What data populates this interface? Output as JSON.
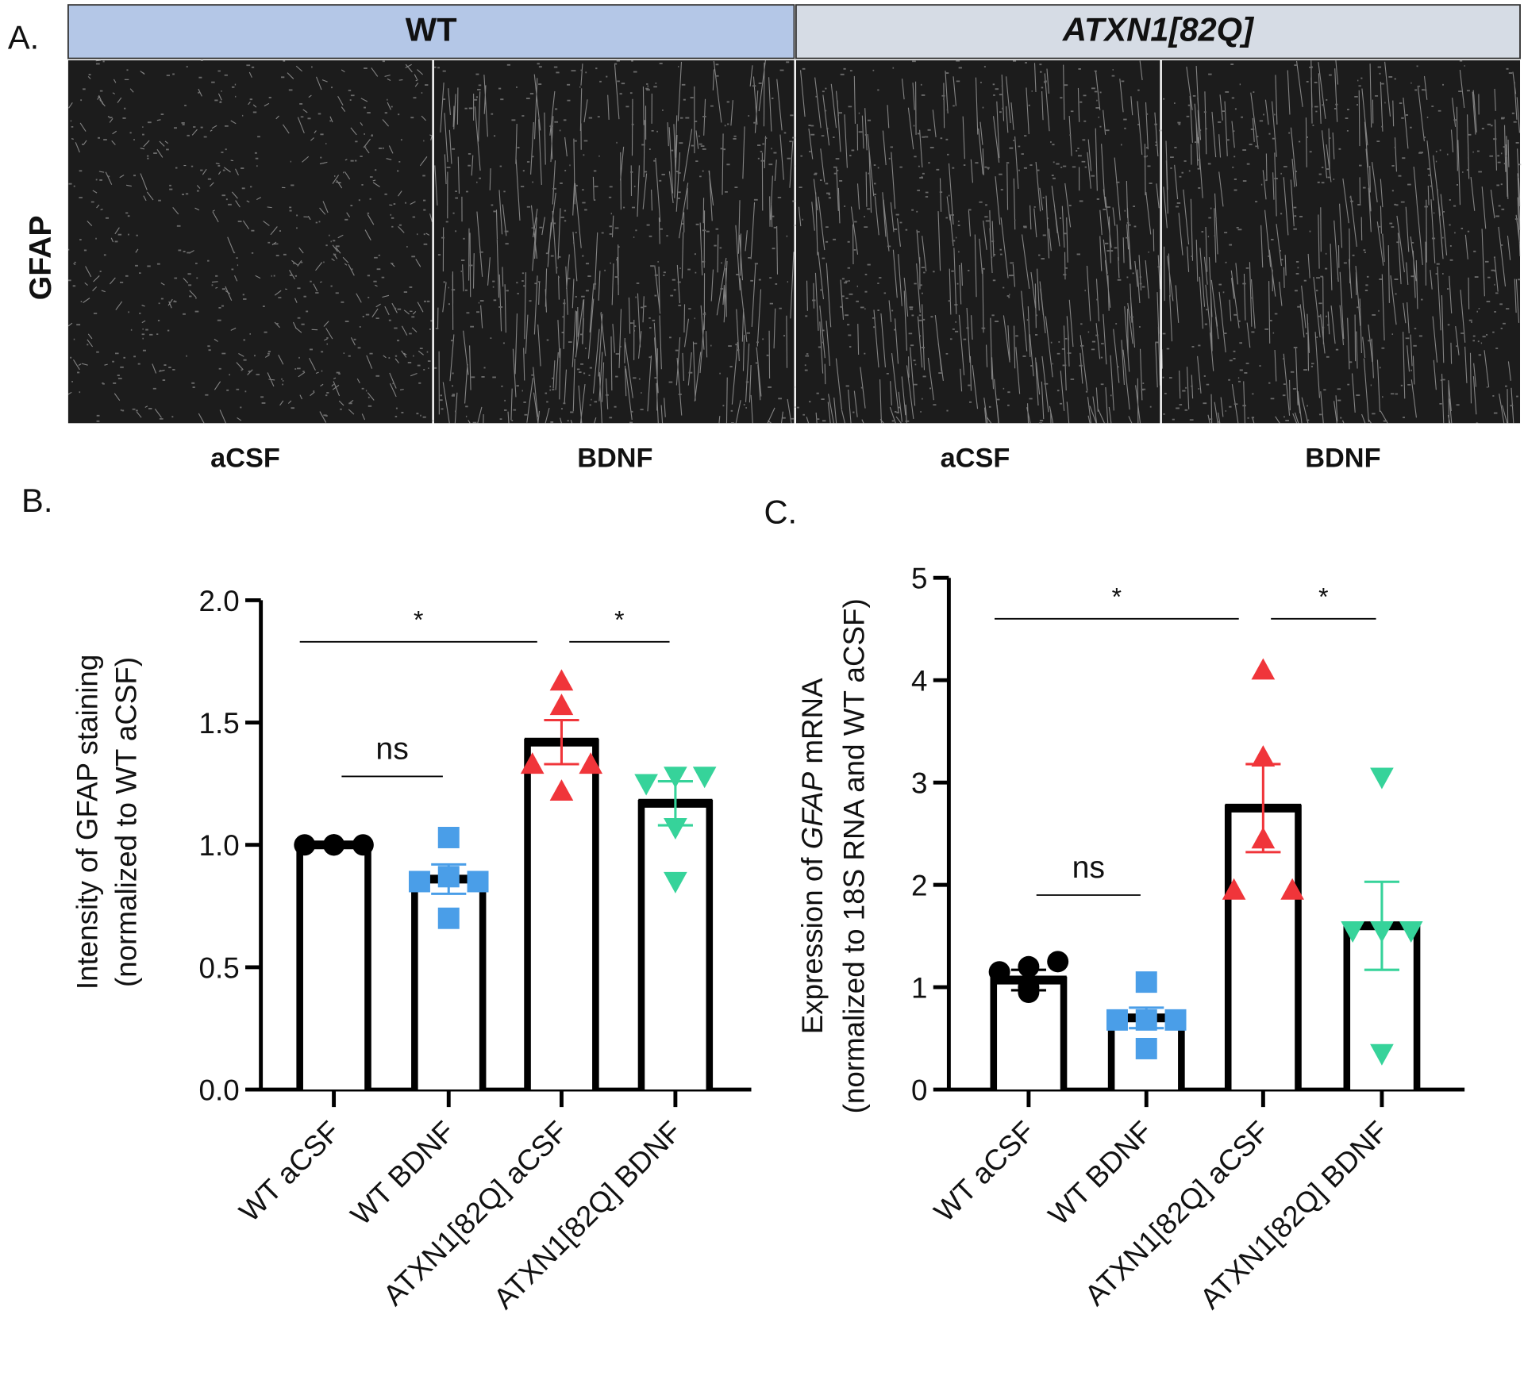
{
  "panel_labels": [
    "A.",
    "B.",
    "C."
  ],
  "panel_a": {
    "headers": [
      "WT",
      "ATXN1[82Q]"
    ],
    "row_label": "GFAP",
    "columns": [
      "aCSF",
      "BDNF",
      "aCSF",
      "BDNF"
    ]
  },
  "chart_data": [
    {
      "type": "bar",
      "ylabel": [
        {
          "text": "Intensity of GFAP staining"
        }
      ],
      "ylabel_line2": "(normalized to WT aCSF)",
      "categories": [
        "WT aCSF",
        "WT BDNF",
        "ATXN1[82Q] aCSF",
        "ATXN1[82Q] BDNF"
      ],
      "values": [
        1.0,
        0.86,
        1.42,
        1.17
      ],
      "errors": [
        0.01,
        0.06,
        0.09,
        0.09
      ],
      "points": [
        [
          1,
          1,
          1,
          1,
          1
        ],
        [
          0.85,
          1.03,
          0.87,
          0.7,
          0.85
        ],
        [
          1.33,
          1.67,
          1.57,
          1.22,
          1.33
        ],
        [
          1.25,
          1.07,
          0.85,
          1.28,
          1.28
        ]
      ],
      "point_colors": [
        "#000000",
        "#4a9ee8",
        "#f0353a",
        "#36d39a"
      ],
      "markers": [
        "circle",
        "square",
        "triangle-up",
        "triangle-down"
      ],
      "ylim": [
        0,
        2
      ],
      "yticks": [
        {
          "value": 0,
          "label": "0.0"
        },
        0.5,
        {
          "value": 1,
          "label": "1.0"
        },
        1.5,
        {
          "value": 2,
          "label": "2.0"
        }
      ],
      "annotations": [
        {
          "text": "ns",
          "from": 0,
          "to": 1,
          "y": 1.28
        },
        {
          "text": "*",
          "from": 0,
          "to": 2,
          "y": 1.83
        },
        {
          "text": "*",
          "from": 2,
          "to": 3,
          "y": 1.83
        }
      ]
    },
    {
      "type": "bar",
      "ylabel": [
        {
          "text": "Expression of "
        },
        {
          "text": "GFAP",
          "italic": true
        },
        {
          "text": " mRNA"
        }
      ],
      "ylabel_line2": "(normalized to 18S RNA and WT aCSF)",
      "categories": [
        "WT aCSF",
        "WT BDNF",
        "ATXN1[82Q] aCSF",
        "ATXN1[82Q] BDNF"
      ],
      "values": [
        1.07,
        0.7,
        2.75,
        1.6
      ],
      "errors": [
        0.1,
        0.1,
        0.43,
        0.43
      ],
      "points": [
        [
          1.15,
          0.95,
          1.2,
          1.0,
          1.25
        ],
        [
          0.68,
          1.05,
          0.68,
          0.4,
          0.68
        ],
        [
          1.95,
          4.1,
          3.25,
          2.45,
          1.95
        ],
        [
          1.55,
          3.05,
          1.55,
          0.35,
          1.55
        ]
      ],
      "point_colors": [
        "#000000",
        "#4a9ee8",
        "#f0353a",
        "#36d39a"
      ],
      "markers": [
        "circle",
        "square",
        "triangle-up",
        "triangle-down"
      ],
      "ylim": [
        0,
        5
      ],
      "yticks": [
        0,
        1,
        2,
        3,
        4,
        5
      ],
      "annotations": [
        {
          "text": "ns",
          "from": 0,
          "to": 1,
          "y": 1.9
        },
        {
          "text": "*",
          "from": 0,
          "to": 2,
          "y": 4.6
        },
        {
          "text": "*",
          "from": 2,
          "to": 3,
          "y": 4.6
        }
      ]
    }
  ]
}
